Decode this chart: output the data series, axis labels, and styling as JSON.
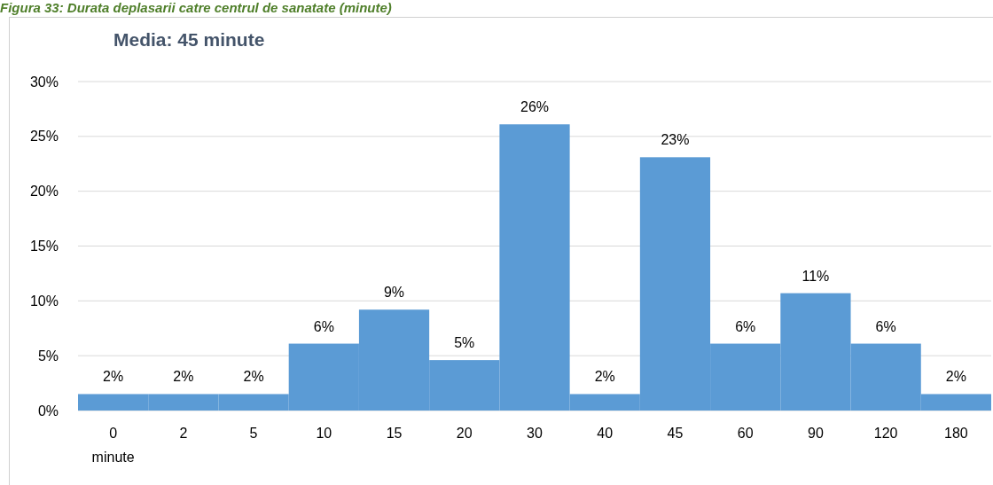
{
  "chart_data": {
    "type": "bar",
    "title": "Figura 33: Durata deplasarii catre centrul de sanatate (minute)",
    "subtitle": "Media: 45 minute",
    "xlabel": "minute",
    "categories": [
      "0",
      "2",
      "5",
      "10",
      "15",
      "20",
      "30",
      "40",
      "45",
      "60",
      "90",
      "120",
      "180"
    ],
    "values": [
      1.5,
      1.5,
      1.5,
      6.1,
      9.2,
      4.6,
      26.1,
      1.5,
      23.1,
      6.1,
      10.7,
      6.1,
      1.5
    ],
    "value_labels": [
      "2%",
      "2%",
      "2%",
      "6%",
      "9%",
      "5%",
      "26%",
      "2%",
      "23%",
      "6%",
      "11%",
      "6%",
      "2%"
    ],
    "color": "#5b9bd5",
    "ylim": [
      0,
      30
    ],
    "yticks": [
      {
        "value": 0,
        "label": "0%"
      },
      {
        "value": 5,
        "label": "5%"
      },
      {
        "value": 10,
        "label": "10%"
      },
      {
        "value": 15,
        "label": "15%"
      },
      {
        "value": 20,
        "label": "20%"
      },
      {
        "value": 25,
        "label": "25%"
      },
      {
        "value": 30,
        "label": "30%"
      }
    ],
    "grid": true
  }
}
